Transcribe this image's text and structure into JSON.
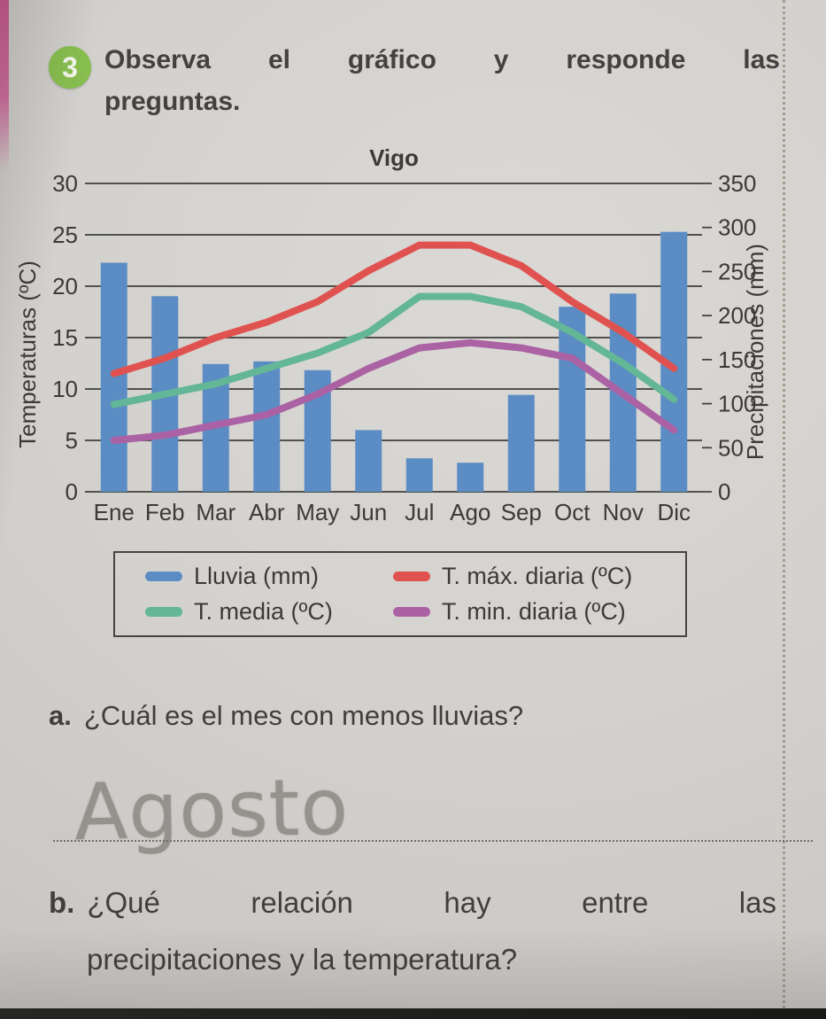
{
  "header": {
    "badge": "3",
    "line1": "Observa el gráfico y responde las",
    "line2": "preguntas."
  },
  "chart_data": {
    "type": "bar+line climograph",
    "title": "Vigo",
    "categories": [
      "Ene",
      "Feb",
      "Mar",
      "Abr",
      "May",
      "Jun",
      "Jul",
      "Ago",
      "Sep",
      "Oct",
      "Nov",
      "Dic"
    ],
    "bar_series": {
      "name": "Lluvia (mm)",
      "axis": "right",
      "color": "#5b8cc4",
      "values": [
        260,
        222,
        145,
        148,
        138,
        70,
        38,
        33,
        110,
        210,
        225,
        295
      ]
    },
    "line_series": [
      {
        "name": "T. máx. diaria (ºC)",
        "color": "#e0524f",
        "values": [
          11.5,
          13,
          15,
          16.5,
          18.5,
          21.5,
          24,
          24,
          22,
          18.5,
          15.5,
          12
        ]
      },
      {
        "name": "T. media (ºC)",
        "color": "#63b696",
        "values": [
          8.5,
          9.5,
          10.5,
          12,
          13.5,
          15.5,
          19,
          19,
          18,
          15.5,
          12.5,
          9
        ]
      },
      {
        "name": "T. min. diaria (ºC)",
        "color": "#ab62a4",
        "values": [
          5,
          5.5,
          6.5,
          7.5,
          9.5,
          12,
          14,
          14.5,
          14,
          13,
          9.5,
          6
        ]
      }
    ],
    "left_axis": {
      "label": "Temperaturas (ºC)",
      "min": 0,
      "max": 30,
      "ticks": [
        30,
        25,
        20,
        15,
        10,
        5,
        0
      ]
    },
    "right_axis": {
      "label": "Precipitaciones (mm)",
      "min": 0,
      "max": 350,
      "ticks": [
        350,
        300,
        250,
        200,
        150,
        100,
        50,
        0
      ]
    },
    "grid": true,
    "legend_position": "box below chart"
  },
  "questions": {
    "a": {
      "prefix": "a.",
      "text": "¿Cuál es el mes con menos lluvias?",
      "handwritten_answer": "Agosto"
    },
    "b": {
      "prefix": "b.",
      "line1": "¿Qué relación hay entre las",
      "line2": "precipitaciones y la temperatura?"
    }
  },
  "colors": {
    "edge_accent_pink": "#c9548c",
    "badge_green": "#87bf4e",
    "pencil_gray": "#8d8b85",
    "paper": "#d3d1cd"
  }
}
